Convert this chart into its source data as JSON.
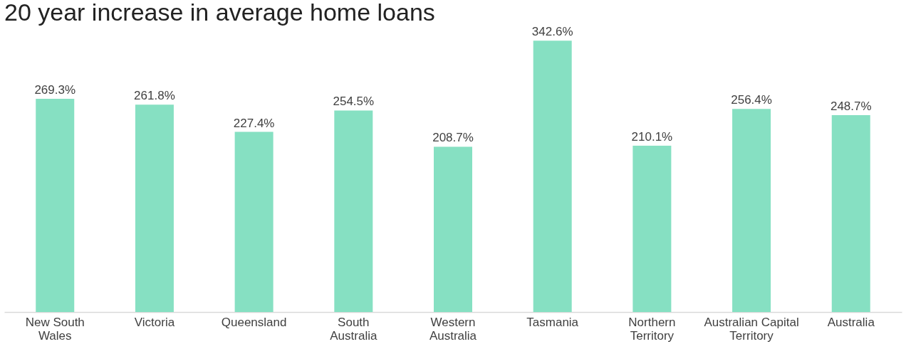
{
  "chart_data": {
    "type": "bar",
    "title": "20 year increase in average home loans",
    "categories": [
      "New South Wales",
      "Victoria",
      "Queensland",
      "South Australia",
      "Western Australia",
      "Tasmania",
      "Northern Territory",
      "Australian Capital Territory",
      "Australia"
    ],
    "values": [
      269.3,
      261.8,
      227.4,
      254.5,
      208.7,
      342.6,
      210.1,
      256.4,
      248.7
    ],
    "value_labels": [
      "269.3%",
      "261.8%",
      "227.4%",
      "254.5%",
      "208.7%",
      "342.6%",
      "210.1%",
      "256.4%",
      "248.7%"
    ],
    "color": "#86e0c2",
    "grid": false,
    "tick_labels": "x"
  }
}
